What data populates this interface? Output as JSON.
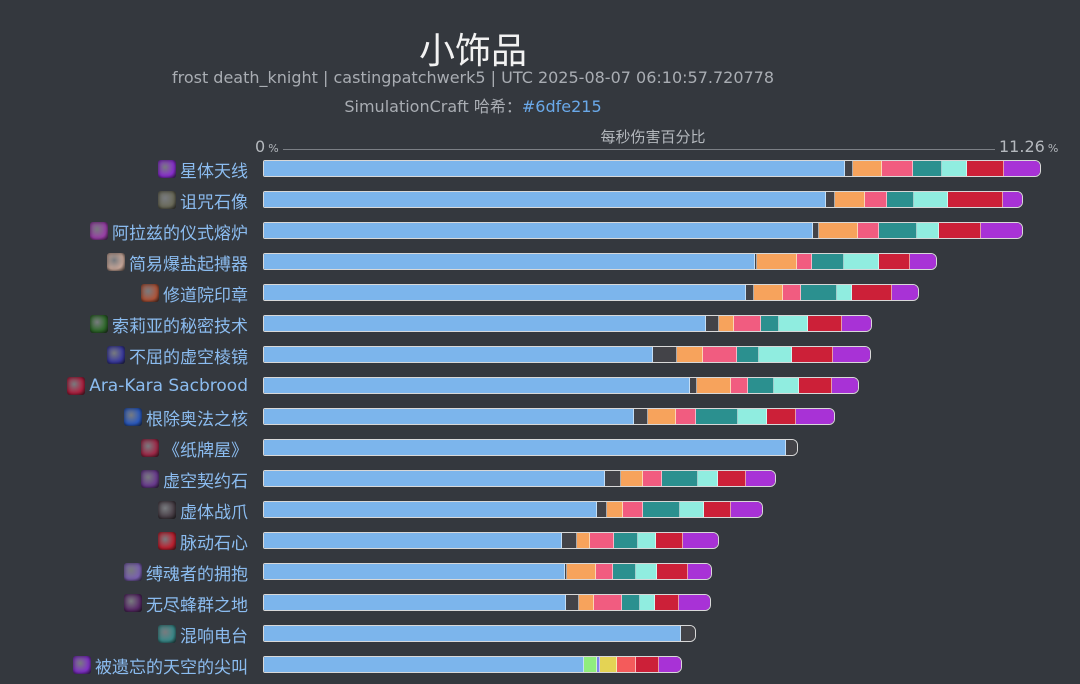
{
  "header": {
    "title": "小饰品",
    "subtitle": "frost death_knight | castingpatchwerk5 | UTC 2025-08-07 06:10:57.720778",
    "hash_label": "SimulationCraft 哈希：",
    "hash_value": "#6dfe215"
  },
  "chart_data": {
    "type": "bar",
    "orientation": "horizontal",
    "stacked": true,
    "xlabel": "每秒伤害百分比",
    "xlim": [
      0,
      11.26
    ],
    "ticks": [
      {
        "value": "0",
        "unit": "%"
      },
      {
        "value": "11.26",
        "unit": "%"
      }
    ],
    "grid": false,
    "legend": "none",
    "segment_colors": [
      "#7cb5ec",
      "#434348",
      "#f7a35c",
      "#f15c80",
      "#2b908f",
      "#90ede0",
      "#cc2038",
      "#a832d6",
      "#90ed7d",
      "#8085e9",
      "#e4d354",
      "#f45b5b"
    ],
    "rows": [
      {
        "label": "星体天线",
        "icon": "astral-antenna-icon",
        "icon_color": "#8a2fd0",
        "segments": [
          [
            0,
            8.43
          ],
          [
            1,
            0.12
          ],
          [
            2,
            0.41
          ],
          [
            3,
            0.45
          ],
          [
            4,
            0.43
          ],
          [
            5,
            0.36
          ],
          [
            6,
            0.54
          ],
          [
            7,
            0.52
          ]
        ]
      },
      {
        "label": "诅咒石像",
        "icon": "cursed-stone-idol-icon",
        "icon_color": "#6b6b5a",
        "segments": [
          [
            0,
            8.16
          ],
          [
            1,
            0.13
          ],
          [
            2,
            0.43
          ],
          [
            3,
            0.32
          ],
          [
            4,
            0.39
          ],
          [
            5,
            0.49
          ],
          [
            6,
            0.8
          ],
          [
            7,
            0.28
          ]
        ]
      },
      {
        "label": "阿拉兹的仪式熔炉",
        "icon": "araz-forge-icon",
        "icon_color": "#9a3fa8",
        "segments": [
          [
            0,
            7.96
          ],
          [
            1,
            0.09
          ],
          [
            2,
            0.57
          ],
          [
            3,
            0.3
          ],
          [
            4,
            0.55
          ],
          [
            5,
            0.32
          ],
          [
            6,
            0.62
          ],
          [
            7,
            0.59
          ]
        ]
      },
      {
        "label": "简易爆盐起搏器",
        "icon": "saltpeter-icon",
        "icon_color": "#c9a89a",
        "segments": [
          [
            0,
            7.13
          ],
          [
            1,
            0.03
          ],
          [
            2,
            0.58
          ],
          [
            3,
            0.22
          ],
          [
            4,
            0.46
          ],
          [
            5,
            0.51
          ],
          [
            6,
            0.45
          ],
          [
            7,
            0.38
          ]
        ]
      },
      {
        "label": "修道院印章",
        "icon": "priory-seal-icon",
        "icon_color": "#b0553a",
        "segments": [
          [
            0,
            6.99
          ],
          [
            1,
            0.12
          ],
          [
            2,
            0.43
          ],
          [
            3,
            0.26
          ],
          [
            4,
            0.52
          ],
          [
            5,
            0.22
          ],
          [
            6,
            0.58
          ],
          [
            7,
            0.38
          ]
        ]
      },
      {
        "label": "索莉亚的秘密技术",
        "icon": "soleah-technique-icon",
        "icon_color": "#2e6a2a",
        "segments": [
          [
            0,
            6.42
          ],
          [
            1,
            0.19
          ],
          [
            2,
            0.22
          ],
          [
            3,
            0.39
          ],
          [
            4,
            0.26
          ],
          [
            5,
            0.42
          ],
          [
            6,
            0.49
          ],
          [
            7,
            0.43
          ]
        ]
      },
      {
        "label": "不屈的虚空棱镜",
        "icon": "void-prism-icon",
        "icon_color": "#3a3aa0",
        "segments": [
          [
            0,
            5.65
          ],
          [
            1,
            0.35
          ],
          [
            2,
            0.38
          ],
          [
            3,
            0.49
          ],
          [
            4,
            0.32
          ],
          [
            5,
            0.48
          ],
          [
            6,
            0.59
          ],
          [
            7,
            0.54
          ]
        ]
      },
      {
        "label": "Ara-Kara Sacbrood",
        "icon": "sacbrood-icon",
        "icon_color": "#b02040",
        "segments": [
          [
            0,
            6.19
          ],
          [
            1,
            0.1
          ],
          [
            2,
            0.49
          ],
          [
            3,
            0.25
          ],
          [
            4,
            0.38
          ],
          [
            5,
            0.36
          ],
          [
            6,
            0.48
          ],
          [
            7,
            0.38
          ]
        ]
      },
      {
        "label": "根除奥法之核",
        "icon": "arcane-core-icon",
        "icon_color": "#2a5ac0",
        "segments": [
          [
            0,
            5.38
          ],
          [
            1,
            0.19
          ],
          [
            2,
            0.41
          ],
          [
            3,
            0.29
          ],
          [
            4,
            0.61
          ],
          [
            5,
            0.43
          ],
          [
            6,
            0.42
          ],
          [
            7,
            0.55
          ]
        ]
      },
      {
        "label": "《纸牌屋》",
        "icon": "house-of-cards-icon",
        "icon_color": "#a02848",
        "segments": [
          [
            0,
            7.58
          ],
          [
            1,
            0.16
          ]
        ]
      },
      {
        "label": "虚空契约石",
        "icon": "void-pact-stone-icon",
        "icon_color": "#6a3a90",
        "segments": [
          [
            0,
            4.96
          ],
          [
            1,
            0.22
          ],
          [
            2,
            0.33
          ],
          [
            3,
            0.28
          ],
          [
            4,
            0.51
          ],
          [
            5,
            0.3
          ],
          [
            6,
            0.41
          ],
          [
            7,
            0.41
          ]
        ]
      },
      {
        "label": "虚体战爪",
        "icon": "ethereal-claw-icon",
        "icon_color": "#4a4048",
        "segments": [
          [
            0,
            4.84
          ],
          [
            1,
            0.14
          ],
          [
            2,
            0.23
          ],
          [
            3,
            0.3
          ],
          [
            4,
            0.54
          ],
          [
            5,
            0.35
          ],
          [
            6,
            0.38
          ],
          [
            7,
            0.46
          ]
        ]
      },
      {
        "label": "脉动石心",
        "icon": "pulsing-heart-icon",
        "icon_color": "#c02030",
        "segments": [
          [
            0,
            4.33
          ],
          [
            1,
            0.22
          ],
          [
            2,
            0.19
          ],
          [
            3,
            0.35
          ],
          [
            4,
            0.35
          ],
          [
            5,
            0.26
          ],
          [
            6,
            0.39
          ],
          [
            7,
            0.51
          ]
        ]
      },
      {
        "label": "缚魂者的拥抱",
        "icon": "soulbinder-embrace-icon",
        "icon_color": "#7a60b0",
        "segments": [
          [
            0,
            4.38
          ],
          [
            1,
            0.03
          ],
          [
            2,
            0.41
          ],
          [
            3,
            0.26
          ],
          [
            4,
            0.33
          ],
          [
            5,
            0.3
          ],
          [
            6,
            0.46
          ],
          [
            7,
            0.33
          ]
        ]
      },
      {
        "label": "无尽蜂群之地",
        "icon": "swarm-icon",
        "icon_color": "#5a2a6a",
        "segments": [
          [
            0,
            4.39
          ],
          [
            1,
            0.19
          ],
          [
            2,
            0.22
          ],
          [
            3,
            0.41
          ],
          [
            4,
            0.26
          ],
          [
            5,
            0.22
          ],
          [
            6,
            0.35
          ],
          [
            7,
            0.45
          ]
        ]
      },
      {
        "label": "混响电台",
        "icon": "reverb-radio-icon",
        "icon_color": "#3a8a8a",
        "segments": [
          [
            0,
            6.07
          ],
          [
            1,
            0.2
          ]
        ]
      },
      {
        "label": "被遗忘的天空的尖叫",
        "icon": "forgotten-sky-icon",
        "icon_color": "#8030c8",
        "segments": [
          [
            0,
            4.65
          ],
          [
            8,
            0.19
          ],
          [
            9,
            0.04
          ],
          [
            10,
            0.25
          ],
          [
            11,
            0.28
          ],
          [
            6,
            0.33
          ],
          [
            7,
            0.33
          ]
        ]
      }
    ]
  }
}
